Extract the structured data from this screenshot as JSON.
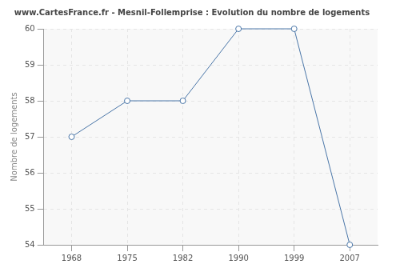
{
  "chart_data": {
    "type": "line",
    "title": "www.CartesFrance.fr - Mesnil-Follemprise : Evolution du nombre de logements",
    "y_label": "Nombre de logements",
    "categories": [
      "1968",
      "1975",
      "1982",
      "1990",
      "1999",
      "2007"
    ],
    "values": [
      57,
      58,
      58,
      60,
      60,
      54
    ],
    "color": "#4a76a8",
    "marker": "circle",
    "ylim": [
      54,
      60
    ],
    "yticks": [
      54,
      55,
      56,
      57,
      58,
      59,
      60
    ],
    "grid": true
  }
}
